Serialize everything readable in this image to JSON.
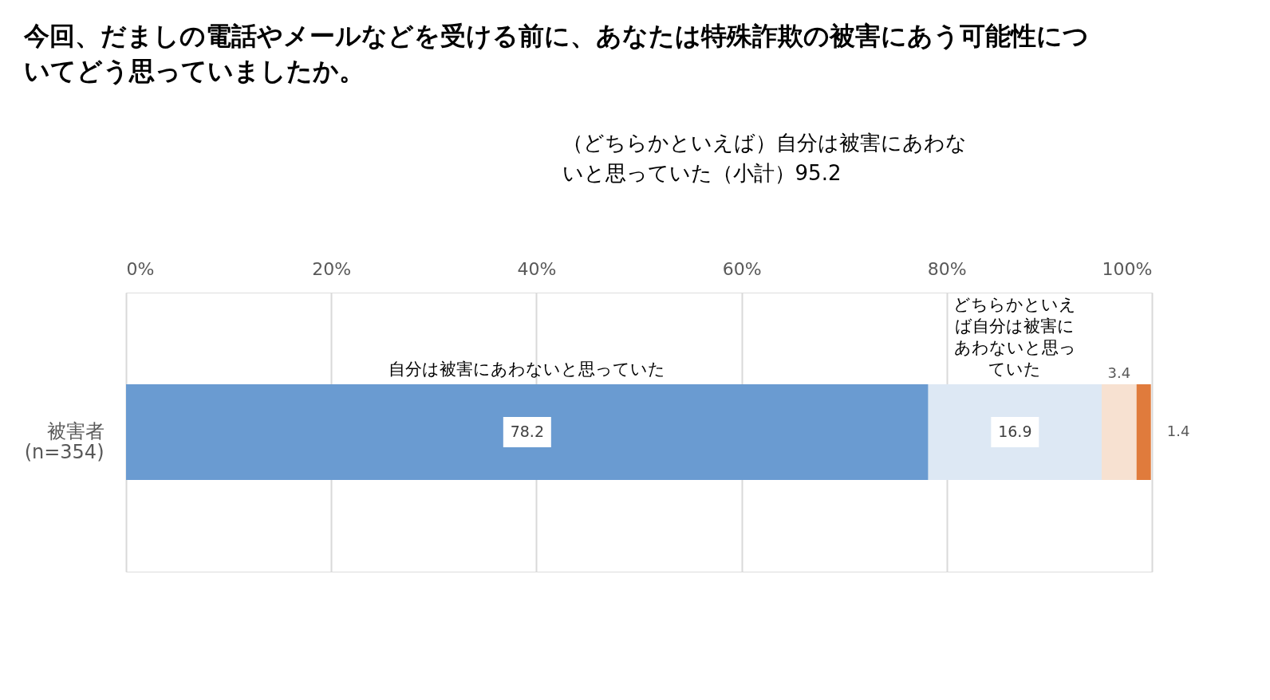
{
  "chart_data": {
    "type": "bar",
    "orientation": "horizontal",
    "stacked": true,
    "title": "今回、だましの電話やメールなどを受ける前に、あなたは特殊詐欺の被害にあう可能性についてどう思っていましたか。",
    "categories": [
      "被害者 (n=354)"
    ],
    "series": [
      {
        "name": "自分は被害にあわないと思っていた",
        "color": "#6a9bd1",
        "values": [
          78.2
        ]
      },
      {
        "name": "どちらかといえば自分は被害にあわないと思っていた",
        "color": "#dde8f4",
        "values": [
          16.9
        ]
      },
      {
        "color": "#f7e1d1",
        "values": [
          3.4
        ]
      },
      {
        "color": "#e07b3c",
        "values": [
          1.4
        ]
      }
    ],
    "xlim": [
      0,
      100
    ],
    "xticks": [
      {
        "value": 0,
        "label": "0%"
      },
      {
        "value": 20,
        "label": "20%"
      },
      {
        "value": 40,
        "label": "40%"
      },
      {
        "value": 60,
        "label": "60%"
      },
      {
        "value": 80,
        "label": "80%"
      },
      {
        "value": 100,
        "label": "100%"
      }
    ],
    "grid": "x",
    "data_labels": true,
    "annotations": [
      "（どちらかといえば）自分は被害にあわないと思っていた（小計）95.2"
    ]
  }
}
